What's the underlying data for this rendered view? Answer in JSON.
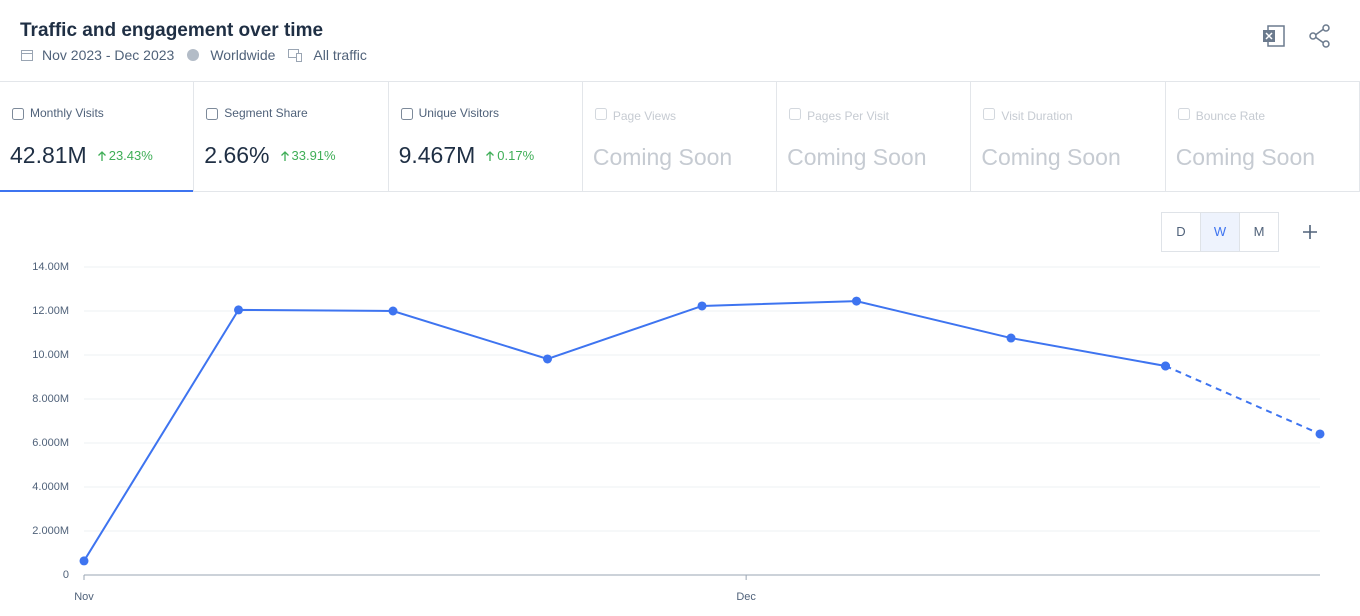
{
  "header": {
    "title": "Traffic and engagement over time",
    "date_range": "Nov 2023 - Dec 2023",
    "region": "Worldwide",
    "traffic": "All traffic"
  },
  "tabs": [
    {
      "label": "Monthly Visits",
      "value": "42.81M",
      "change": "23.43%",
      "active": true
    },
    {
      "label": "Segment Share",
      "value": "2.66%",
      "change": "33.91%"
    },
    {
      "label": "Unique Visitors",
      "value": "9.467M",
      "change": "0.17%"
    },
    {
      "label": "Page Views",
      "value": "Coming Soon"
    },
    {
      "label": "Pages Per Visit",
      "value": "Coming Soon"
    },
    {
      "label": "Visit Duration",
      "value": "Coming Soon"
    },
    {
      "label": "Bounce Rate",
      "value": "Coming Soon"
    }
  ],
  "granularity": [
    "D",
    "W",
    "M"
  ],
  "chart_data": {
    "type": "line",
    "x": [
      0,
      7,
      14,
      21,
      28,
      35,
      42,
      49,
      56
    ],
    "xlim": [
      0,
      56
    ],
    "xticks": [
      {
        "value": 0,
        "label": "Nov"
      },
      {
        "value": 30,
        "label": "Dec"
      }
    ],
    "series": [
      {
        "color": "#3e74f0",
        "dashed": false,
        "values": [
          640000,
          12050000,
          12000000,
          9820000,
          12230000,
          12450000,
          10770000,
          9500000,
          null
        ]
      },
      {
        "color": "#3e74f0",
        "dashed": true,
        "values": [
          null,
          null,
          null,
          null,
          null,
          null,
          null,
          9500000,
          6410000
        ]
      }
    ],
    "ylim": [
      0,
      14000000
    ],
    "yticks": [
      0,
      {
        "value": 2000000,
        "label": "2.000M"
      },
      {
        "value": 4000000,
        "label": "4.000M"
      },
      {
        "value": 6000000,
        "label": "6.000M"
      },
      {
        "value": 8000000,
        "label": "8.000M"
      },
      {
        "value": 10000000,
        "label": "10.00M"
      },
      {
        "value": 12000000,
        "label": "12.00M"
      },
      {
        "value": 14000000,
        "label": "14.00M"
      }
    ],
    "grid": true
  }
}
